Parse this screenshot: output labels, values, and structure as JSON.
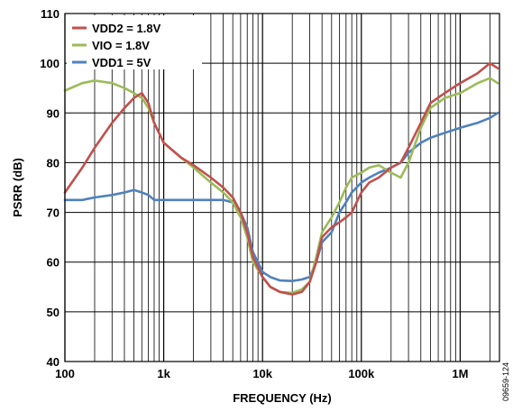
{
  "chart_data": {
    "type": "line",
    "title": "",
    "xlabel": "FREQUENCY (Hz)",
    "ylabel": "PSRR (dB)",
    "x_scale": "log",
    "xlim": [
      100,
      2500000
    ],
    "ylim": [
      40,
      110
    ],
    "grid": true,
    "legend_position": "top-left",
    "x_ticks": [
      {
        "value": 100,
        "label": "100"
      },
      {
        "value": 1000,
        "label": "1k"
      },
      {
        "value": 10000,
        "label": "10k"
      },
      {
        "value": 100000,
        "label": "100k"
      },
      {
        "value": 1000000,
        "label": "1M"
      }
    ],
    "y_ticks": [
      40,
      50,
      60,
      70,
      80,
      90,
      100,
      110
    ],
    "figure_id": "09659-124",
    "series": [
      {
        "name": "VDD2 = 1.8V",
        "color": "#c0504d",
        "x": [
          100,
          150,
          200,
          300,
          400,
          500,
          600,
          700,
          800,
          1000,
          1500,
          2000,
          3000,
          4000,
          5000,
          6000,
          7000,
          8000,
          10000,
          12000,
          15000,
          20000,
          25000,
          30000,
          35000,
          40000,
          50000,
          60000,
          70000,
          80000,
          100000,
          120000,
          150000,
          200000,
          250000,
          300000,
          400000,
          500000,
          700000,
          1000000,
          1500000,
          2000000,
          2400000
        ],
        "y": [
          74,
          79,
          83,
          88,
          91,
          93,
          94,
          92,
          88,
          84,
          81,
          79.5,
          77,
          75,
          73,
          70,
          66,
          61,
          57,
          55,
          54,
          53.5,
          54,
          56,
          60,
          65,
          67,
          68,
          69,
          70,
          74,
          76,
          77,
          79,
          80,
          83,
          88,
          92,
          94,
          96,
          98,
          100,
          99
        ]
      },
      {
        "name": "VIO = 1.8V",
        "color": "#9bbb59",
        "x": [
          100,
          150,
          200,
          300,
          400,
          500,
          600,
          700,
          800,
          1000,
          1500,
          2000,
          3000,
          4000,
          5000,
          6000,
          7000,
          8000,
          10000,
          12000,
          15000,
          20000,
          25000,
          30000,
          35000,
          40000,
          50000,
          60000,
          70000,
          80000,
          100000,
          120000,
          150000,
          200000,
          250000,
          300000,
          400000,
          500000,
          700000,
          1000000,
          1500000,
          2000000,
          2400000
        ],
        "y": [
          94.5,
          96,
          96.5,
          96,
          95,
          94,
          93,
          91,
          88,
          84,
          81,
          79,
          76,
          74,
          72,
          69,
          65,
          60,
          57,
          55,
          54,
          53.8,
          54.5,
          56,
          61,
          66,
          69,
          72,
          75,
          77,
          78,
          79,
          79.5,
          78,
          77,
          80,
          87,
          91,
          93,
          94,
          96,
          97,
          96
        ]
      },
      {
        "name": "VDD1 = 5V",
        "color": "#4f81bd",
        "x": [
          100,
          150,
          200,
          300,
          400,
          500,
          600,
          700,
          800,
          1000,
          1500,
          2000,
          3000,
          4000,
          5000,
          6000,
          7000,
          8000,
          10000,
          12000,
          15000,
          20000,
          25000,
          30000,
          35000,
          40000,
          50000,
          60000,
          70000,
          80000,
          100000,
          120000,
          150000,
          200000,
          250000,
          300000,
          400000,
          500000,
          700000,
          1000000,
          1500000,
          2000000,
          2400000
        ],
        "y": [
          72.5,
          72.5,
          73,
          73.5,
          74,
          74.5,
          74,
          73.5,
          72.5,
          72.5,
          72.5,
          72.5,
          72.5,
          72.5,
          72,
          70,
          67,
          62,
          58,
          57,
          56.3,
          56.2,
          56.5,
          57,
          60,
          64,
          66,
          70,
          72,
          74,
          76,
          77,
          78,
          79,
          80,
          82,
          84,
          85,
          86,
          87,
          88,
          89,
          90
        ]
      }
    ]
  }
}
